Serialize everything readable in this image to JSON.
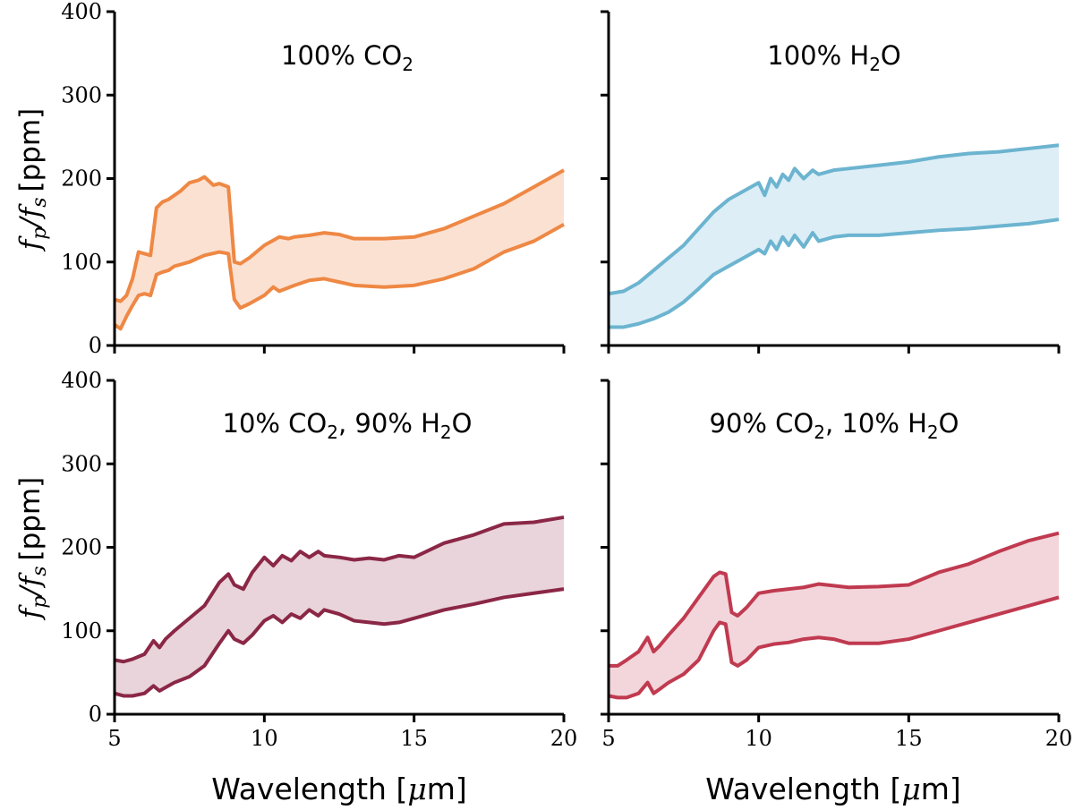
{
  "figure": {
    "ylabel_fraction": "f",
    "ylabel_sub_p": "p",
    "ylabel_slash": "/",
    "ylabel_sub_s": "s",
    "ylabel_unit": "[ppm]",
    "xlabel_prefix": "Wavelength [",
    "xlabel_mu": "μ",
    "xlabel_suffix": "m]"
  },
  "chart_data": [
    {
      "type": "area",
      "title": "100% CO₂",
      "title_parts": [
        "100% CO",
        "2",
        ""
      ],
      "color": "#EE8844",
      "fill": "#FBE1D2",
      "xlim": [
        5,
        20
      ],
      "ylim": [
        0,
        400
      ],
      "xticks": [
        5,
        10,
        15,
        20
      ],
      "yticks": [
        0,
        100,
        200,
        300,
        400
      ],
      "xlabel": "Wavelength [μm]",
      "ylabel": "fp/fs [ppm]",
      "series": [
        {
          "role": "upper",
          "x": [
            5.0,
            5.2,
            5.4,
            5.6,
            5.8,
            6.0,
            6.2,
            6.4,
            6.6,
            6.8,
            7.0,
            7.2,
            7.5,
            7.8,
            8.0,
            8.3,
            8.5,
            8.8,
            9.0,
            9.2,
            9.5,
            10.0,
            10.5,
            10.8,
            11.0,
            11.5,
            12.0,
            12.5,
            13.0,
            14.0,
            15.0,
            16.0,
            17.0,
            18.0,
            19.0,
            20.0
          ],
          "y": [
            55,
            53,
            60,
            80,
            112,
            110,
            108,
            165,
            172,
            175,
            180,
            185,
            195,
            198,
            202,
            192,
            194,
            190,
            100,
            98,
            105,
            120,
            130,
            128,
            130,
            132,
            135,
            133,
            128,
            128,
            130,
            140,
            155,
            170,
            190,
            210
          ]
        },
        {
          "role": "lower",
          "x": [
            5.0,
            5.2,
            5.4,
            5.6,
            5.8,
            6.0,
            6.2,
            6.4,
            6.6,
            6.8,
            7.0,
            7.5,
            8.0,
            8.5,
            8.8,
            9.0,
            9.2,
            9.5,
            10.0,
            10.3,
            10.5,
            11.0,
            11.5,
            12.0,
            12.5,
            13.0,
            14.0,
            15.0,
            16.0,
            17.0,
            18.0,
            19.0,
            20.0
          ],
          "y": [
            25,
            20,
            35,
            48,
            60,
            62,
            60,
            85,
            88,
            90,
            95,
            100,
            108,
            112,
            110,
            55,
            45,
            50,
            60,
            70,
            65,
            72,
            78,
            80,
            76,
            72,
            70,
            72,
            80,
            92,
            112,
            125,
            145
          ]
        }
      ]
    },
    {
      "type": "area",
      "title": "100% H₂O",
      "title_parts": [
        "100% H",
        "2",
        "O"
      ],
      "color": "#6CB4D0",
      "fill": "#DDEEF6",
      "xlim": [
        5,
        20
      ],
      "ylim": [
        0,
        400
      ],
      "xticks": [
        5,
        10,
        15,
        20
      ],
      "yticks": [
        0,
        100,
        200,
        300,
        400
      ],
      "xlabel": "Wavelength [μm]",
      "ylabel": "fp/fs [ppm]",
      "series": [
        {
          "role": "upper",
          "x": [
            5.0,
            5.5,
            6.0,
            6.5,
            7.0,
            7.5,
            8.0,
            8.5,
            9.0,
            9.5,
            10.0,
            10.2,
            10.4,
            10.6,
            10.8,
            11.0,
            11.2,
            11.5,
            11.8,
            12.0,
            12.5,
            13.0,
            14.0,
            15.0,
            16.0,
            17.0,
            18.0,
            19.0,
            20.0
          ],
          "y": [
            62,
            65,
            75,
            90,
            105,
            120,
            140,
            160,
            175,
            185,
            195,
            180,
            200,
            190,
            205,
            198,
            212,
            200,
            210,
            205,
            210,
            212,
            216,
            220,
            226,
            230,
            232,
            236,
            240
          ]
        },
        {
          "role": "lower",
          "x": [
            5.0,
            5.5,
            6.0,
            6.5,
            7.0,
            7.5,
            8.0,
            8.5,
            9.0,
            9.5,
            10.0,
            10.2,
            10.4,
            10.6,
            10.8,
            11.0,
            11.2,
            11.5,
            11.8,
            12.0,
            12.5,
            13.0,
            14.0,
            15.0,
            16.0,
            17.0,
            18.0,
            19.0,
            20.0
          ],
          "y": [
            22,
            22,
            26,
            32,
            40,
            52,
            68,
            85,
            95,
            105,
            115,
            110,
            125,
            115,
            130,
            120,
            132,
            118,
            135,
            125,
            130,
            132,
            132,
            135,
            138,
            140,
            143,
            146,
            151
          ]
        }
      ]
    },
    {
      "type": "area",
      "title": "10% CO₂, 90% H₂O",
      "title_parts": [
        "10% CO",
        "2",
        ", 90% H",
        "2",
        "O"
      ],
      "color": "#8B2746",
      "fill": "#E8D4DA",
      "xlim": [
        5,
        20
      ],
      "ylim": [
        0,
        400
      ],
      "xticks": [
        5,
        10,
        15,
        20
      ],
      "yticks": [
        0,
        100,
        200,
        300,
        400
      ],
      "xlabel": "Wavelength [μm]",
      "ylabel": "fp/fs [ppm]",
      "series": [
        {
          "role": "upper",
          "x": [
            5.0,
            5.3,
            5.6,
            6.0,
            6.3,
            6.5,
            6.7,
            7.0,
            7.5,
            8.0,
            8.5,
            8.8,
            9.0,
            9.3,
            9.6,
            10.0,
            10.3,
            10.6,
            10.9,
            11.2,
            11.5,
            11.8,
            12.0,
            12.5,
            13.0,
            13.5,
            14.0,
            14.5,
            15.0,
            16.0,
            17.0,
            18.0,
            19.0,
            20.0
          ],
          "y": [
            65,
            63,
            66,
            72,
            88,
            80,
            90,
            100,
            115,
            130,
            158,
            168,
            155,
            150,
            170,
            188,
            178,
            190,
            184,
            195,
            188,
            195,
            190,
            188,
            185,
            187,
            185,
            190,
            188,
            205,
            215,
            228,
            230,
            236
          ]
        },
        {
          "role": "lower",
          "x": [
            5.0,
            5.3,
            5.6,
            6.0,
            6.3,
            6.5,
            6.7,
            7.0,
            7.5,
            8.0,
            8.5,
            8.8,
            9.0,
            9.3,
            9.6,
            10.0,
            10.3,
            10.6,
            10.9,
            11.2,
            11.5,
            11.8,
            12.0,
            12.5,
            13.0,
            13.5,
            14.0,
            14.5,
            15.0,
            16.0,
            17.0,
            18.0,
            19.0,
            20.0
          ],
          "y": [
            25,
            22,
            22,
            25,
            34,
            28,
            32,
            38,
            45,
            58,
            85,
            100,
            90,
            85,
            95,
            112,
            118,
            110,
            120,
            115,
            125,
            118,
            125,
            120,
            112,
            110,
            108,
            110,
            115,
            125,
            132,
            140,
            145,
            150
          ]
        }
      ]
    },
    {
      "type": "area",
      "title": "90% CO₂, 10% H₂O",
      "title_parts": [
        "90% CO",
        "2",
        ", 10% H",
        "2",
        "O"
      ],
      "color": "#C03A50",
      "fill": "#F2D6DB",
      "xlim": [
        5,
        20
      ],
      "ylim": [
        0,
        400
      ],
      "xticks": [
        5,
        10,
        15,
        20
      ],
      "yticks": [
        0,
        100,
        200,
        300,
        400
      ],
      "xlabel": "Wavelength [μm]",
      "ylabel": "fp/fs [ppm]",
      "series": [
        {
          "role": "upper",
          "x": [
            5.0,
            5.3,
            5.6,
            6.0,
            6.3,
            6.5,
            6.7,
            7.0,
            7.5,
            8.0,
            8.5,
            8.7,
            8.9,
            9.1,
            9.3,
            9.6,
            10.0,
            10.5,
            11.0,
            11.5,
            12.0,
            12.5,
            13.0,
            14.0,
            15.0,
            16.0,
            17.0,
            18.0,
            19.0,
            20.0
          ],
          "y": [
            58,
            58,
            65,
            75,
            92,
            75,
            82,
            95,
            115,
            140,
            165,
            170,
            168,
            122,
            118,
            128,
            145,
            148,
            150,
            152,
            156,
            154,
            152,
            153,
            155,
            170,
            180,
            195,
            208,
            217
          ]
        },
        {
          "role": "lower",
          "x": [
            5.0,
            5.3,
            5.6,
            6.0,
            6.3,
            6.5,
            6.7,
            7.0,
            7.5,
            8.0,
            8.5,
            8.7,
            8.9,
            9.1,
            9.3,
            9.6,
            10.0,
            10.5,
            11.0,
            11.5,
            12.0,
            12.5,
            13.0,
            14.0,
            15.0,
            16.0,
            17.0,
            18.0,
            19.0,
            20.0
          ],
          "y": [
            22,
            20,
            20,
            25,
            38,
            25,
            30,
            38,
            48,
            65,
            100,
            110,
            108,
            62,
            58,
            65,
            80,
            84,
            86,
            90,
            92,
            90,
            85,
            85,
            90,
            100,
            110,
            120,
            130,
            140
          ]
        }
      ]
    }
  ]
}
